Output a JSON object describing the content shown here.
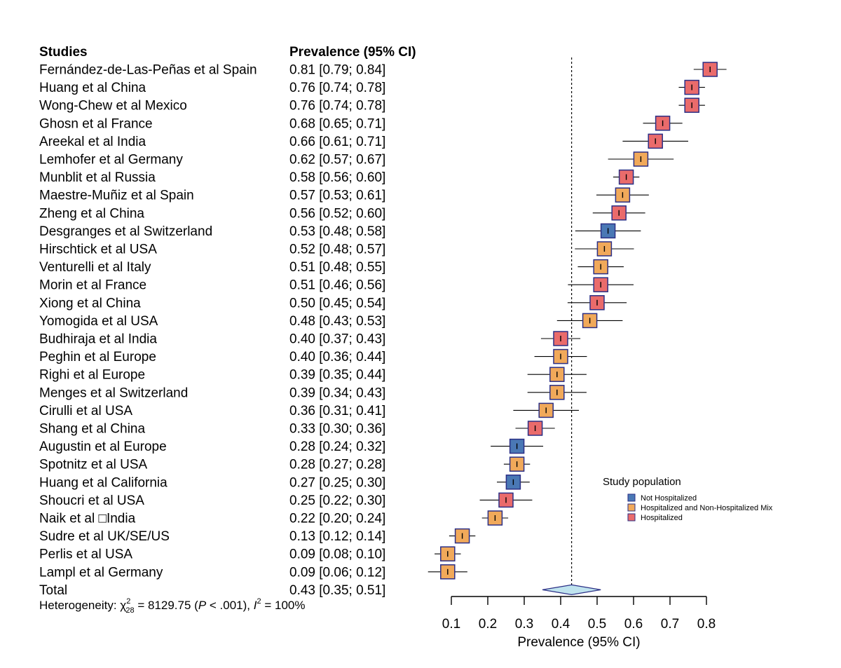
{
  "headers": {
    "studies": "Studies",
    "prevalence": "Prevalence (95% CI)"
  },
  "heterogeneity": {
    "prefix": "Heterogeneity: ",
    "chi": "χ",
    "chi_sup": "2",
    "chi_sub": "28",
    "mid": " = 8129.75 (",
    "p": "P",
    "p_rest": " < .001), ",
    "i": "I",
    "i_sup": "2",
    "i_rest": " = 100%"
  },
  "colors": {
    "Not Hospitalized": "#4a78b5",
    "Hospitalized and Non-Hospitalized Mix": "#f1a95a",
    "Hospitalized": "#ea6b6b",
    "box_border": "#2b2f86",
    "diamond_fill": "#bfe3ee",
    "diamond_border": "#2b2f86"
  },
  "chart_data": {
    "type": "forest",
    "xlabel": "Prevalence (95% CI)",
    "xlim": [
      0.1,
      0.8
    ],
    "xticks": [
      0.1,
      0.2,
      0.3,
      0.4,
      0.5,
      0.6,
      0.7,
      0.8
    ],
    "xtick_labels": [
      "0.1",
      "0.2",
      "0.3",
      "0.4",
      "0.5",
      "0.6",
      "0.7",
      "0.8"
    ],
    "reference_line": 0.43,
    "legend": {
      "title": "Study population",
      "placement": "right",
      "items": [
        "Not Hospitalized",
        "Hospitalized and Non-Hospitalized Mix",
        "Hospitalized"
      ]
    },
    "studies": [
      {
        "name": "Fernández-de-Las-Peñas et al Spain",
        "est": 0.81,
        "lo": 0.79,
        "hi": 0.84,
        "label": "0.81 [0.79; 0.84]",
        "group": "Hospitalized"
      },
      {
        "name": "Huang et al China",
        "est": 0.76,
        "lo": 0.74,
        "hi": 0.78,
        "label": "0.76 [0.74; 0.78]",
        "group": "Hospitalized"
      },
      {
        "name": "Wong-Chew et al Mexico",
        "est": 0.76,
        "lo": 0.74,
        "hi": 0.78,
        "label": "0.76 [0.74; 0.78]",
        "group": "Hospitalized"
      },
      {
        "name": "Ghosn et al France",
        "est": 0.68,
        "lo": 0.65,
        "hi": 0.71,
        "label": "0.68 [0.65; 0.71]",
        "group": "Hospitalized"
      },
      {
        "name": "Areekal et al India",
        "est": 0.66,
        "lo": 0.61,
        "hi": 0.71,
        "label": "0.66 [0.61; 0.71]",
        "group": "Hospitalized"
      },
      {
        "name": "Lemhofer et al Germany",
        "est": 0.62,
        "lo": 0.57,
        "hi": 0.67,
        "label": "0.62 [0.57; 0.67]",
        "group": "Hospitalized and Non-Hospitalized Mix"
      },
      {
        "name": "Munblit et al Russia",
        "est": 0.58,
        "lo": 0.56,
        "hi": 0.6,
        "label": "0.58 [0.56; 0.60]",
        "group": "Hospitalized"
      },
      {
        "name": "Maestre-Muñiz et al Spain",
        "est": 0.57,
        "lo": 0.53,
        "hi": 0.61,
        "label": "0.57 [0.53; 0.61]",
        "group": "Hospitalized and Non-Hospitalized Mix"
      },
      {
        "name": "Zheng et al China",
        "est": 0.56,
        "lo": 0.52,
        "hi": 0.6,
        "label": "0.56 [0.52; 0.60]",
        "group": "Hospitalized"
      },
      {
        "name": "Desgranges et al Switzerland",
        "est": 0.53,
        "lo": 0.48,
        "hi": 0.58,
        "label": "0.53 [0.48; 0.58]",
        "group": "Not Hospitalized"
      },
      {
        "name": "Hirschtick et al USA",
        "est": 0.52,
        "lo": 0.48,
        "hi": 0.57,
        "label": "0.52 [0.48; 0.57]",
        "group": "Hospitalized and Non-Hospitalized Mix"
      },
      {
        "name": "Venturelli et al Italy",
        "est": 0.51,
        "lo": 0.48,
        "hi": 0.55,
        "label": "0.51 [0.48; 0.55]",
        "group": "Hospitalized and Non-Hospitalized Mix"
      },
      {
        "name": "Morin et al France",
        "est": 0.51,
        "lo": 0.46,
        "hi": 0.56,
        "label": "0.51 [0.46; 0.56]",
        "group": "Hospitalized"
      },
      {
        "name": "Xiong et al China",
        "est": 0.5,
        "lo": 0.45,
        "hi": 0.54,
        "label": "0.50 [0.45; 0.54]",
        "group": "Hospitalized"
      },
      {
        "name": "Yomogida et al USA",
        "est": 0.48,
        "lo": 0.43,
        "hi": 0.53,
        "label": "0.48 [0.43; 0.53]",
        "group": "Hospitalized and Non-Hospitalized Mix"
      },
      {
        "name": "Budhiraja et al India",
        "est": 0.4,
        "lo": 0.37,
        "hi": 0.43,
        "label": "0.40 [0.37; 0.43]",
        "group": "Hospitalized"
      },
      {
        "name": "Peghin et al Europe",
        "est": 0.4,
        "lo": 0.36,
        "hi": 0.44,
        "label": "0.40 [0.36; 0.44]",
        "group": "Hospitalized and Non-Hospitalized Mix"
      },
      {
        "name": "Righi et al Europe",
        "est": 0.39,
        "lo": 0.35,
        "hi": 0.44,
        "label": "0.39 [0.35; 0.44]",
        "group": "Hospitalized and Non-Hospitalized Mix"
      },
      {
        "name": "Menges et al Switzerland",
        "est": 0.39,
        "lo": 0.34,
        "hi": 0.43,
        "label": "0.39 [0.34; 0.43]",
        "group": "Hospitalized and Non-Hospitalized Mix"
      },
      {
        "name": "Cirulli et al USA",
        "est": 0.36,
        "lo": 0.31,
        "hi": 0.41,
        "label": "0.36 [0.31; 0.41]",
        "group": "Hospitalized and Non-Hospitalized Mix"
      },
      {
        "name": "Shang et al China",
        "est": 0.33,
        "lo": 0.3,
        "hi": 0.36,
        "label": "0.33 [0.30; 0.36]",
        "group": "Hospitalized"
      },
      {
        "name": "Augustin et al Europe",
        "est": 0.28,
        "lo": 0.24,
        "hi": 0.32,
        "label": "0.28 [0.24; 0.32]",
        "group": "Not Hospitalized"
      },
      {
        "name": "Spotnitz et al USA",
        "est": 0.28,
        "lo": 0.27,
        "hi": 0.28,
        "label": "0.28 [0.27; 0.28]",
        "group": "Hospitalized and Non-Hospitalized Mix"
      },
      {
        "name": "Huang et al California",
        "est": 0.27,
        "lo": 0.25,
        "hi": 0.3,
        "label": "0.27 [0.25; 0.30]",
        "group": "Not Hospitalized"
      },
      {
        "name": "Shoucri et al USA",
        "est": 0.25,
        "lo": 0.22,
        "hi": 0.3,
        "label": "0.25 [0.22; 0.30]",
        "group": "Hospitalized"
      },
      {
        "name": "Naik et al □India",
        "est": 0.22,
        "lo": 0.2,
        "hi": 0.24,
        "label": "0.22 [0.20; 0.24]",
        "group": "Hospitalized and Non-Hospitalized Mix"
      },
      {
        "name": "Sudre et al UK/SE/US",
        "est": 0.13,
        "lo": 0.12,
        "hi": 0.14,
        "label": "0.13 [0.12; 0.14]",
        "group": "Hospitalized and Non-Hospitalized Mix"
      },
      {
        "name": "Perlis et al USA",
        "est": 0.09,
        "lo": 0.08,
        "hi": 0.1,
        "label": "0.09 [0.08; 0.10]",
        "group": "Hospitalized and Non-Hospitalized Mix"
      },
      {
        "name": "Lampl et al Germany",
        "est": 0.09,
        "lo": 0.06,
        "hi": 0.12,
        "label": "0.09 [0.06; 0.12]",
        "group": "Hospitalized and Non-Hospitalized Mix"
      }
    ],
    "total": {
      "name": "Total",
      "est": 0.43,
      "lo": 0.35,
      "hi": 0.51,
      "label": "0.43 [0.35; 0.51]"
    }
  }
}
